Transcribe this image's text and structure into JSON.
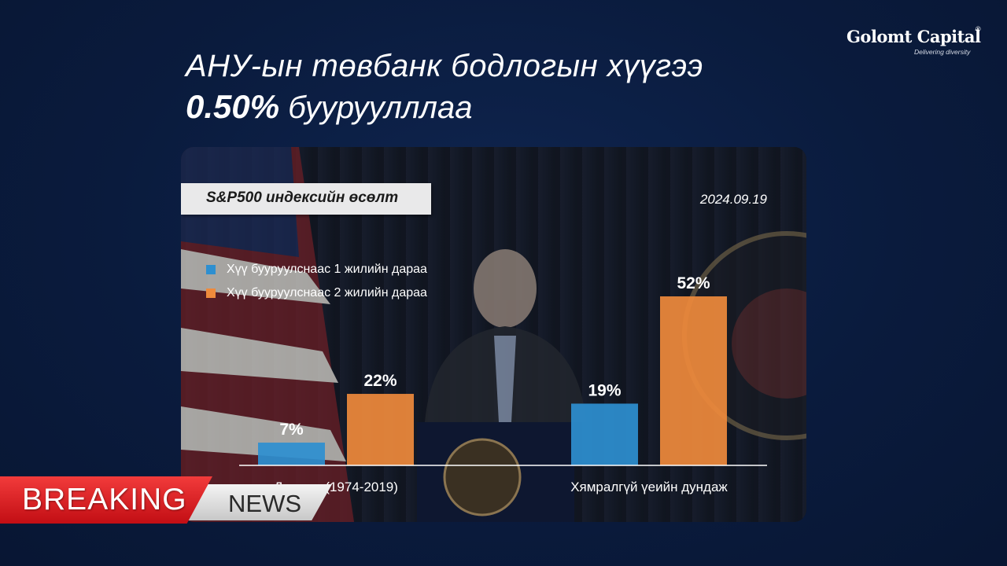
{
  "headline": {
    "line1": "АНУ-ын төвбанк бодлогын хүүгээ",
    "highlight": "0.50%",
    "line2_rest": " бууруулллаа"
  },
  "logo": {
    "name": "Golomt Capital",
    "tagline": "Delivering diversity",
    "registered": "®"
  },
  "chart_title": "S&P500 индексийн өсөлт",
  "date": "2024.09.19",
  "banner": {
    "breaking": "BREAKING",
    "news": "NEWS"
  },
  "colors": {
    "series1": "#2e8fd0",
    "series2": "#ef8a3c",
    "background": "#0a1b3d"
  },
  "chart_data": {
    "type": "bar",
    "categories": [
      "Дундаж (1974-2019)",
      "Хямралгүй үеийн дундаж"
    ],
    "series": [
      {
        "name": "Хүү бууруулснаас 1 жилийн дараа",
        "values": [
          7,
          19
        ],
        "labels": [
          "7%",
          "19%"
        ]
      },
      {
        "name": "Хүү бууруулснаас 2 жилийн дараа",
        "values": [
          22,
          52
        ],
        "labels": [
          "22%",
          "52%"
        ]
      }
    ],
    "ylim": [
      0,
      52
    ],
    "legend_position": "top-left",
    "grid": false
  }
}
